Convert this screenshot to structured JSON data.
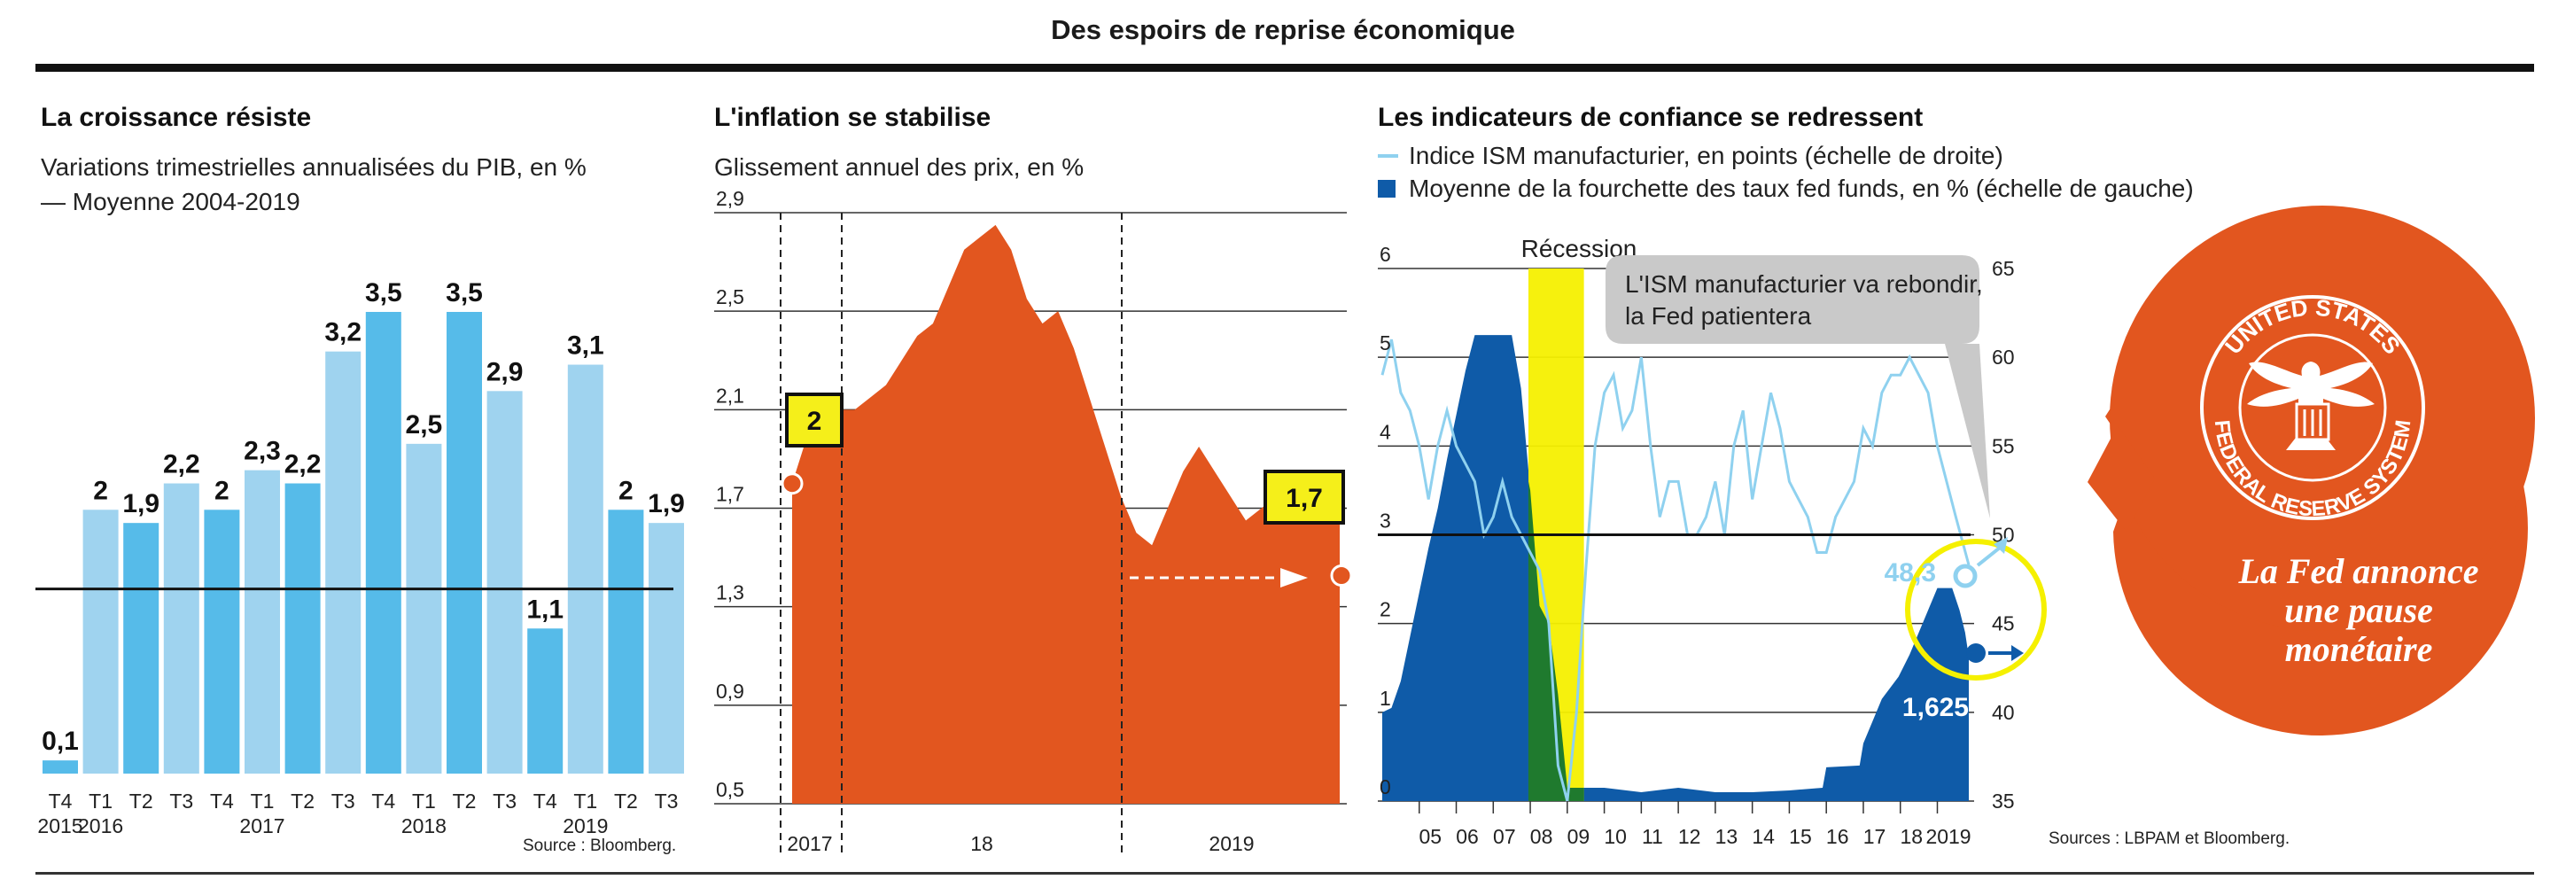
{
  "title": "Des espoirs de reprise économique",
  "sources_left": "Source : Bloomberg.",
  "sources_right": "Sources : LBPAM et Bloomberg.",
  "chart_data": [
    {
      "type": "bar",
      "title": "La croissance résiste",
      "subtitle": "Variations trimestrielles annualisées du PIB, en %",
      "legend": "— Moyenne 2004-2019",
      "reference_line": 1.4,
      "categories": [
        "T4",
        "T1",
        "T2",
        "T3",
        "T4",
        "T1",
        "T2",
        "T3",
        "T4",
        "T1",
        "T2",
        "T3",
        "T4",
        "T1",
        "T2",
        "T3"
      ],
      "years": [
        {
          "label": "2015",
          "index": 0
        },
        {
          "label": "2016",
          "index": 1
        },
        {
          "label": "2017",
          "index": 5
        },
        {
          "label": "2018",
          "index": 9
        },
        {
          "label": "2019",
          "index": 13
        }
      ],
      "values": [
        0.1,
        2,
        1.9,
        2.2,
        2,
        2.3,
        2.2,
        3.2,
        3.5,
        2.5,
        3.5,
        2.9,
        1.1,
        3.1,
        2,
        1.9
      ],
      "value_labels": [
        "0,1",
        "2",
        "1,9",
        "2,2",
        "2",
        "2,3",
        "2,2",
        "3,2",
        "3,5",
        "2,5",
        "3,5",
        "2,9",
        "1,1",
        "3,1",
        "2",
        "1,9"
      ],
      "ylim": [
        0,
        3.6
      ],
      "colors": {
        "light": "#9fd3ef",
        "dark": "#56bbe9"
      }
    },
    {
      "type": "area",
      "title": "L'inflation se stabilise",
      "subtitle": "Glissement annuel des prix, en %",
      "ylim": [
        0.5,
        2.9
      ],
      "yticks": [
        0.5,
        0.9,
        1.3,
        1.7,
        2.1,
        2.5,
        2.9
      ],
      "ytick_labels": [
        "0,5",
        "0,9",
        "1,3",
        "1,7",
        "2,1",
        "2,5",
        "2,9"
      ],
      "x_labels": [
        "2017",
        "18",
        "2019"
      ],
      "x": [
        0,
        0.5,
        1,
        1.5,
        2,
        2.5,
        3,
        3.5,
        4,
        4.5,
        5,
        5.5,
        6,
        6.5,
        7,
        7.5,
        8,
        8.5,
        9,
        9.5,
        10,
        10.5,
        11,
        11.5,
        12,
        12.5,
        13,
        13.5,
        14,
        14.5,
        15,
        15.5,
        16,
        16.5,
        17,
        17.5
      ],
      "y": [
        1.8,
        2.0,
        2.1,
        2.1,
        2.1,
        2.15,
        2.2,
        2.3,
        2.4,
        2.45,
        2.6,
        2.75,
        2.8,
        2.85,
        2.75,
        2.55,
        2.45,
        2.5,
        2.35,
        2.15,
        1.95,
        1.75,
        1.6,
        1.55,
        1.7,
        1.85,
        1.95,
        1.85,
        1.75,
        1.65,
        1.7,
        1.75,
        1.7,
        1.68,
        1.7,
        1.7
      ],
      "annotations": [
        {
          "label": "2",
          "value": 2.0
        },
        {
          "label": "1,7",
          "value": 1.7
        }
      ],
      "color": "#e2561f"
    },
    {
      "type": "area",
      "title": "Les indicateurs de confiance se redressent",
      "legend": [
        {
          "label": "Indice ISM manufacturier, en points (échelle de droite)",
          "color": "#8fd1ef"
        },
        {
          "label": "Moyenne de la fourchette des taux fed funds, en % (échelle de gauche)",
          "color": "#0f5ba8"
        }
      ],
      "left_ylim": [
        0,
        6
      ],
      "left_yticks": [
        "0",
        "1",
        "2",
        "3",
        "4",
        "5",
        "6"
      ],
      "right_ylim": [
        35,
        65
      ],
      "right_yticks": [
        "35",
        "40",
        "45",
        "50",
        "55",
        "60",
        "65"
      ],
      "x_labels": [
        "05",
        "06",
        "07",
        "08",
        "09",
        "10",
        "11",
        "12",
        "13",
        "14",
        "15",
        "16",
        "17",
        "18",
        "2019"
      ],
      "recession_label": "Récession",
      "callout": "L'ISM manufacturier va rebondir, la Fed patientera",
      "ism_last_label": "48,3",
      "fed_last_label": "1,625",
      "fed_funds": [
        {
          "x": 2004.0,
          "y": 1.0
        },
        {
          "x": 2004.25,
          "y": 1.05
        },
        {
          "x": 2004.5,
          "y": 1.35
        },
        {
          "x": 2004.75,
          "y": 1.85
        },
        {
          "x": 2005.0,
          "y": 2.35
        },
        {
          "x": 2005.25,
          "y": 2.85
        },
        {
          "x": 2005.5,
          "y": 3.3
        },
        {
          "x": 2005.75,
          "y": 3.85
        },
        {
          "x": 2006.0,
          "y": 4.35
        },
        {
          "x": 2006.25,
          "y": 4.85
        },
        {
          "x": 2006.5,
          "y": 5.25
        },
        {
          "x": 2006.75,
          "y": 5.25
        },
        {
          "x": 2007.0,
          "y": 5.25
        },
        {
          "x": 2007.25,
          "y": 5.25
        },
        {
          "x": 2007.5,
          "y": 5.25
        },
        {
          "x": 2007.75,
          "y": 4.65
        },
        {
          "x": 2008.0,
          "y": 3.5
        },
        {
          "x": 2008.25,
          "y": 2.2
        },
        {
          "x": 2008.5,
          "y": 2.0
        },
        {
          "x": 2008.75,
          "y": 1.2
        },
        {
          "x": 2009.0,
          "y": 0.15
        },
        {
          "x": 2010.0,
          "y": 0.15
        },
        {
          "x": 2011.0,
          "y": 0.1
        },
        {
          "x": 2012.0,
          "y": 0.15
        },
        {
          "x": 2013.0,
          "y": 0.1
        },
        {
          "x": 2014.0,
          "y": 0.1
        },
        {
          "x": 2015.0,
          "y": 0.12
        },
        {
          "x": 2015.9,
          "y": 0.15
        },
        {
          "x": 2016.0,
          "y": 0.38
        },
        {
          "x": 2016.9,
          "y": 0.4
        },
        {
          "x": 2017.0,
          "y": 0.65
        },
        {
          "x": 2017.25,
          "y": 0.9
        },
        {
          "x": 2017.5,
          "y": 1.15
        },
        {
          "x": 2017.95,
          "y": 1.4
        },
        {
          "x": 2018.25,
          "y": 1.65
        },
        {
          "x": 2018.5,
          "y": 1.9
        },
        {
          "x": 2018.75,
          "y": 2.15
        },
        {
          "x": 2019.0,
          "y": 2.4
        },
        {
          "x": 2019.4,
          "y": 2.4
        },
        {
          "x": 2019.6,
          "y": 2.15
        },
        {
          "x": 2019.75,
          "y": 1.9
        },
        {
          "x": 2019.85,
          "y": 1.625
        }
      ],
      "ism": [
        {
          "x": 2004.0,
          "y": 59
        },
        {
          "x": 2004.25,
          "y": 61
        },
        {
          "x": 2004.5,
          "y": 58
        },
        {
          "x": 2004.75,
          "y": 57
        },
        {
          "x": 2005.0,
          "y": 55
        },
        {
          "x": 2005.25,
          "y": 52
        },
        {
          "x": 2005.5,
          "y": 55
        },
        {
          "x": 2005.75,
          "y": 57
        },
        {
          "x": 2006.0,
          "y": 55
        },
        {
          "x": 2006.25,
          "y": 54
        },
        {
          "x": 2006.5,
          "y": 53
        },
        {
          "x": 2006.75,
          "y": 50
        },
        {
          "x": 2007.0,
          "y": 51
        },
        {
          "x": 2007.25,
          "y": 53
        },
        {
          "x": 2007.5,
          "y": 51
        },
        {
          "x": 2007.75,
          "y": 50
        },
        {
          "x": 2008.0,
          "y": 49
        },
        {
          "x": 2008.25,
          "y": 48
        },
        {
          "x": 2008.5,
          "y": 45
        },
        {
          "x": 2008.75,
          "y": 37
        },
        {
          "x": 2009.0,
          "y": 35
        },
        {
          "x": 2009.25,
          "y": 40
        },
        {
          "x": 2009.5,
          "y": 48
        },
        {
          "x": 2009.75,
          "y": 55
        },
        {
          "x": 2010.0,
          "y": 58
        },
        {
          "x": 2010.25,
          "y": 59
        },
        {
          "x": 2010.5,
          "y": 56
        },
        {
          "x": 2010.75,
          "y": 57
        },
        {
          "x": 2011.0,
          "y": 60
        },
        {
          "x": 2011.25,
          "y": 55
        },
        {
          "x": 2011.5,
          "y": 51
        },
        {
          "x": 2011.75,
          "y": 53
        },
        {
          "x": 2012.0,
          "y": 53
        },
        {
          "x": 2012.25,
          "y": 50
        },
        {
          "x": 2012.5,
          "y": 50
        },
        {
          "x": 2012.75,
          "y": 51
        },
        {
          "x": 2013.0,
          "y": 53
        },
        {
          "x": 2013.25,
          "y": 50
        },
        {
          "x": 2013.5,
          "y": 55
        },
        {
          "x": 2013.75,
          "y": 57
        },
        {
          "x": 2014.0,
          "y": 52
        },
        {
          "x": 2014.25,
          "y": 55
        },
        {
          "x": 2014.5,
          "y": 58
        },
        {
          "x": 2014.75,
          "y": 56
        },
        {
          "x": 2015.0,
          "y": 53
        },
        {
          "x": 2015.25,
          "y": 52
        },
        {
          "x": 2015.5,
          "y": 51
        },
        {
          "x": 2015.75,
          "y": 49
        },
        {
          "x": 2016.0,
          "y": 49
        },
        {
          "x": 2016.25,
          "y": 51
        },
        {
          "x": 2016.5,
          "y": 52
        },
        {
          "x": 2016.75,
          "y": 53
        },
        {
          "x": 2017.0,
          "y": 56
        },
        {
          "x": 2017.25,
          "y": 55
        },
        {
          "x": 2017.5,
          "y": 58
        },
        {
          "x": 2017.75,
          "y": 59
        },
        {
          "x": 2018.0,
          "y": 59
        },
        {
          "x": 2018.25,
          "y": 60
        },
        {
          "x": 2018.5,
          "y": 59
        },
        {
          "x": 2018.75,
          "y": 58
        },
        {
          "x": 2019.0,
          "y": 55
        },
        {
          "x": 2019.25,
          "y": 53
        },
        {
          "x": 2019.5,
          "y": 51
        },
        {
          "x": 2019.85,
          "y": 48.3
        }
      ]
    }
  ],
  "fed_bubble": {
    "seal_top": "UNITED STATES",
    "seal_bottom": "FEDERAL RESERVE SYSTEM",
    "headline_line1": "La Fed annonce",
    "headline_line2": "une pause",
    "headline_line3": "monétaire",
    "color": "#e2561f"
  }
}
